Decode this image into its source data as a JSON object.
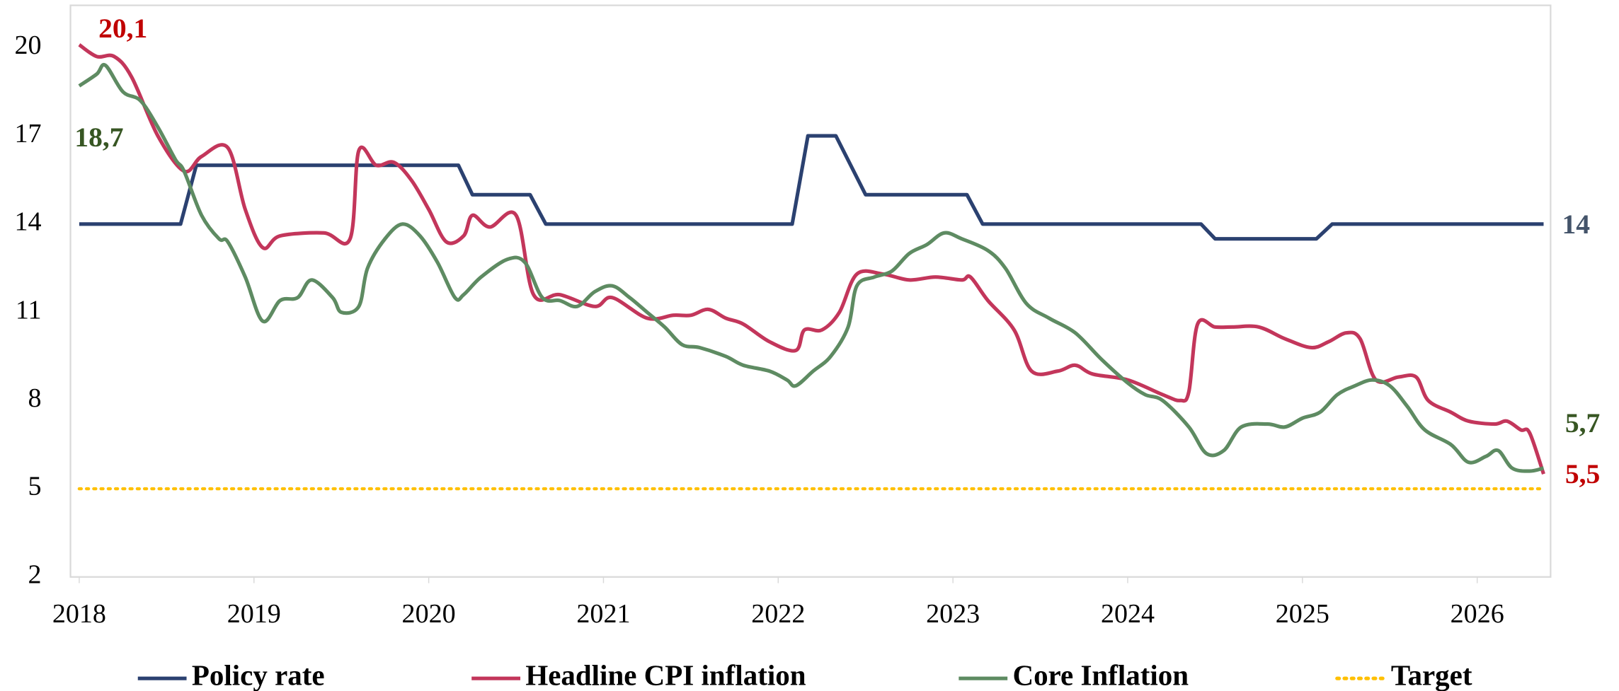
{
  "chart_data": {
    "type": "line",
    "xlim": [
      2017.95,
      2026.42
    ],
    "xticks": [
      2018,
      2019,
      2020,
      2021,
      2022,
      2023,
      2024,
      2025,
      2026
    ],
    "ylim": [
      2,
      21.44
    ],
    "yticks": [
      2,
      5,
      8,
      11,
      14,
      17,
      20
    ],
    "legend": "bottom",
    "series": [
      {
        "name": "Policy rate",
        "color": "#2b4170",
        "style": "solid",
        "smooth": false,
        "x": [
          2018,
          2018.58,
          2018.67,
          2020.17,
          2020.25,
          2020.58,
          2020.67,
          2022.08,
          2022.17,
          2022.33,
          2022.5,
          2023.08,
          2023.17,
          2024.42,
          2024.5,
          2025.08,
          2025.17,
          2026.38
        ],
        "values": [
          14,
          14,
          16,
          16,
          15,
          15,
          14,
          14,
          17,
          17,
          15,
          15,
          14,
          14,
          13.5,
          13.5,
          14,
          14
        ]
      },
      {
        "name": "Headline CPI inflation",
        "color": "#c3365b",
        "style": "solid",
        "smooth": true,
        "x": [
          2018.0,
          2018.1,
          2018.2,
          2018.3,
          2018.45,
          2018.6,
          2018.7,
          2018.85,
          2018.95,
          2019.05,
          2019.15,
          2019.4,
          2019.55,
          2019.6,
          2019.7,
          2019.8,
          2019.9,
          2020.0,
          2020.1,
          2020.2,
          2020.25,
          2020.35,
          2020.5,
          2020.6,
          2020.75,
          2020.95,
          2021.05,
          2021.25,
          2021.4,
          2021.5,
          2021.6,
          2021.7,
          2021.8,
          2021.95,
          2022.1,
          2022.15,
          2022.25,
          2022.35,
          2022.45,
          2022.6,
          2022.75,
          2022.9,
          2023.05,
          2023.1,
          2023.2,
          2023.35,
          2023.45,
          2023.6,
          2023.7,
          2023.8,
          2024.0,
          2024.2,
          2024.3,
          2024.35,
          2024.4,
          2024.5,
          2024.6,
          2024.75,
          2024.9,
          2025.05,
          2025.15,
          2025.25,
          2025.33,
          2025.42,
          2025.55,
          2025.65,
          2025.72,
          2025.85,
          2025.95,
          2026.1,
          2026.17,
          2026.25,
          2026.3,
          2026.38
        ],
        "values": [
          20.1,
          19.7,
          19.7,
          19.0,
          17.0,
          15.8,
          16.3,
          16.6,
          14.5,
          13.2,
          13.6,
          13.7,
          13.5,
          16.5,
          16.0,
          16.1,
          15.5,
          14.5,
          13.4,
          13.6,
          14.3,
          13.9,
          14.3,
          11.6,
          11.6,
          11.2,
          11.5,
          10.8,
          10.9,
          10.9,
          11.1,
          10.8,
          10.6,
          10.0,
          9.7,
          10.4,
          10.4,
          11.0,
          12.3,
          12.3,
          12.1,
          12.2,
          12.1,
          12.2,
          11.4,
          10.4,
          9.0,
          9.0,
          9.2,
          8.9,
          8.7,
          8.2,
          8.0,
          8.3,
          10.6,
          10.5,
          10.5,
          10.5,
          10.1,
          9.8,
          10.0,
          10.3,
          10.1,
          8.7,
          8.8,
          8.8,
          8.0,
          7.6,
          7.3,
          7.2,
          7.3,
          7.0,
          6.9,
          5.5
        ]
      },
      {
        "name": "Core Inflation",
        "color": "#5e8b62",
        "style": "solid",
        "smooth": true,
        "x": [
          2018.0,
          2018.1,
          2018.15,
          2018.25,
          2018.35,
          2018.45,
          2018.55,
          2018.6,
          2018.7,
          2018.8,
          2018.85,
          2018.95,
          2019.05,
          2019.15,
          2019.25,
          2019.33,
          2019.45,
          2019.5,
          2019.6,
          2019.65,
          2019.75,
          2019.85,
          2019.95,
          2020.05,
          2020.15,
          2020.2,
          2020.3,
          2020.45,
          2020.55,
          2020.65,
          2020.75,
          2020.85,
          2020.95,
          2021.05,
          2021.15,
          2021.25,
          2021.35,
          2021.45,
          2021.55,
          2021.7,
          2021.8,
          2021.95,
          2022.05,
          2022.1,
          2022.2,
          2022.3,
          2022.4,
          2022.45,
          2022.55,
          2022.65,
          2022.75,
          2022.85,
          2022.95,
          2023.05,
          2023.2,
          2023.3,
          2023.42,
          2023.55,
          2023.7,
          2023.85,
          2024.0,
          2024.1,
          2024.2,
          2024.35,
          2024.45,
          2024.55,
          2024.65,
          2024.8,
          2024.9,
          2025.0,
          2025.1,
          2025.2,
          2025.3,
          2025.4,
          2025.5,
          2025.6,
          2025.7,
          2025.85,
          2025.95,
          2026.05,
          2026.12,
          2026.2,
          2026.3,
          2026.38
        ],
        "values": [
          18.7,
          19.1,
          19.4,
          18.5,
          18.2,
          17.3,
          16.2,
          15.8,
          14.3,
          13.5,
          13.4,
          12.2,
          10.7,
          11.4,
          11.5,
          12.1,
          11.5,
          11.0,
          11.2,
          12.5,
          13.5,
          14.0,
          13.6,
          12.7,
          11.5,
          11.6,
          12.2,
          12.8,
          12.7,
          11.5,
          11.4,
          11.2,
          11.7,
          11.9,
          11.5,
          11.0,
          10.5,
          9.9,
          9.8,
          9.5,
          9.2,
          9.0,
          8.7,
          8.5,
          9.0,
          9.5,
          10.5,
          11.9,
          12.2,
          12.4,
          13.0,
          13.3,
          13.7,
          13.5,
          13.1,
          12.5,
          11.3,
          10.8,
          10.3,
          9.4,
          8.6,
          8.2,
          8.0,
          7.1,
          6.2,
          6.3,
          7.1,
          7.2,
          7.1,
          7.4,
          7.6,
          8.2,
          8.5,
          8.7,
          8.5,
          7.8,
          7.0,
          6.5,
          5.9,
          6.1,
          6.3,
          5.7,
          5.6,
          5.7
        ]
      },
      {
        "name": "Target",
        "color": "#ffc000",
        "style": "dotted",
        "smooth": false,
        "x": [
          2018,
          2026.38
        ],
        "values": [
          5,
          5
        ]
      }
    ],
    "annotations": [
      {
        "text": "20,1",
        "color": "#c00000"
      },
      {
        "text": "18,7",
        "color": "#375623"
      },
      {
        "text": "14",
        "color": "#44546a"
      },
      {
        "text": "5,7",
        "color": "#375623"
      },
      {
        "text": "5,5",
        "color": "#c00000"
      }
    ]
  }
}
